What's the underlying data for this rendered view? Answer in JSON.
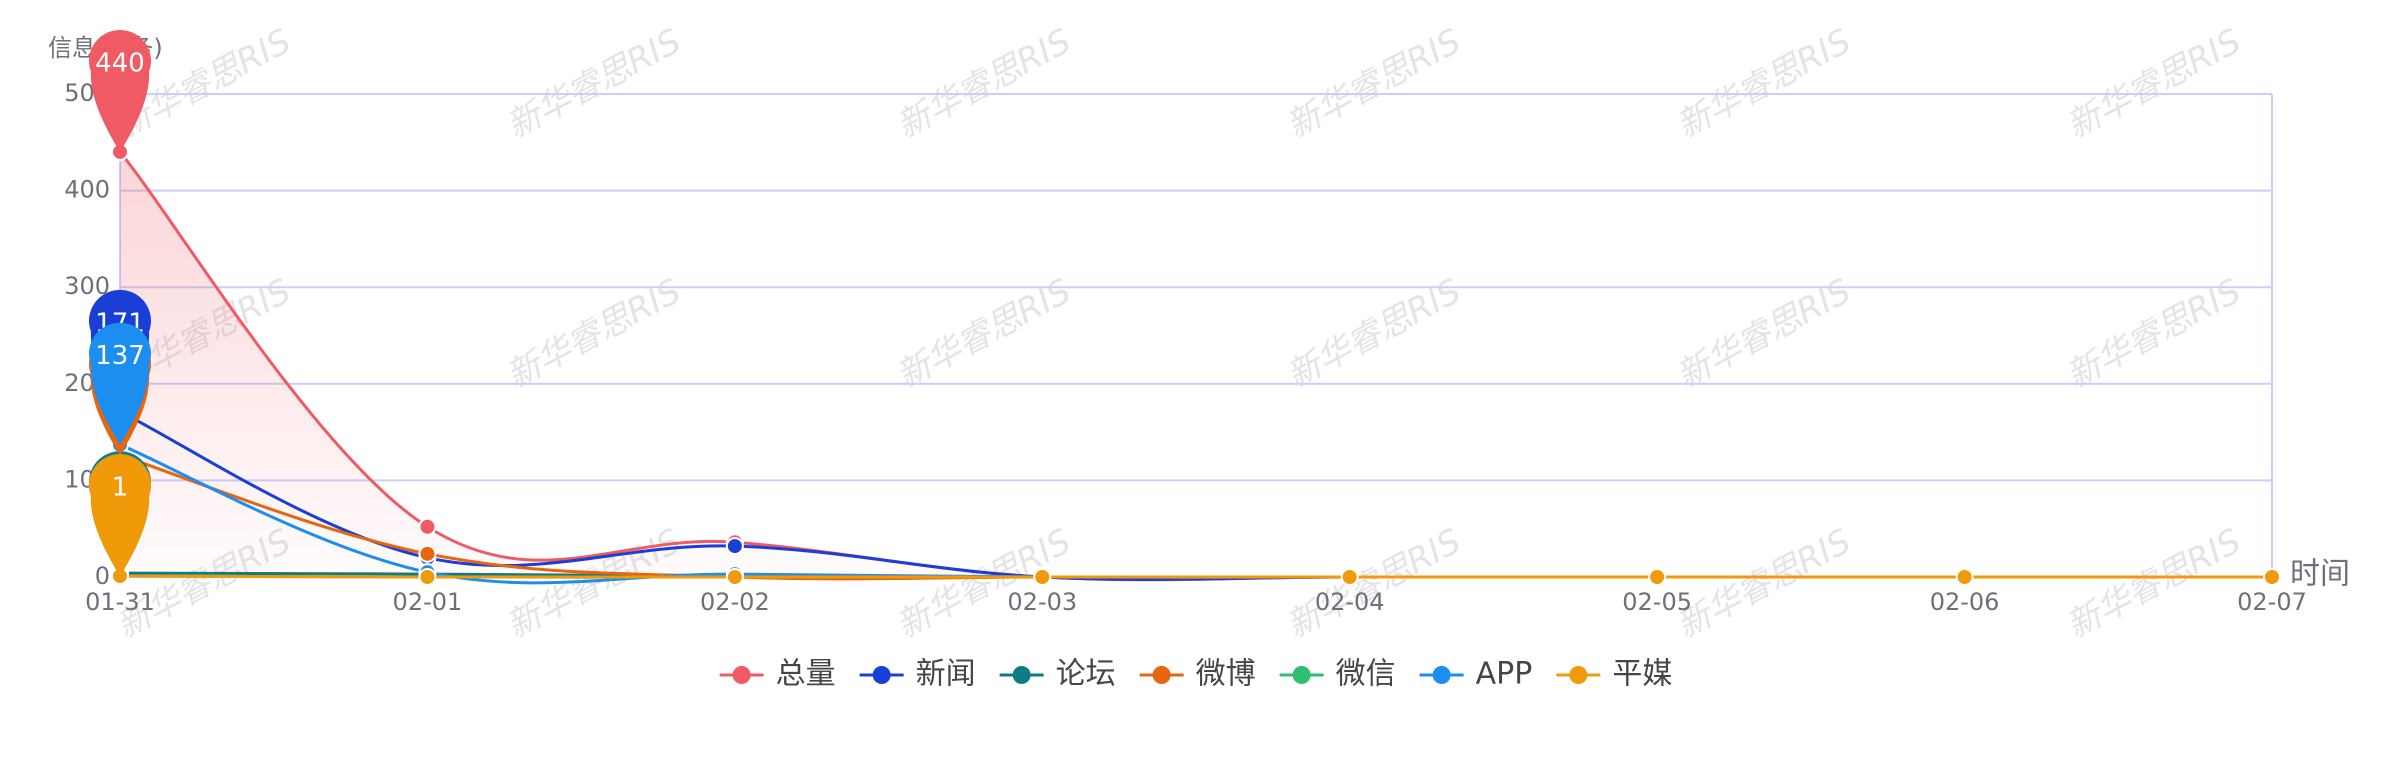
{
  "chart_data": {
    "type": "line",
    "watermark": "新华睿思RIS",
    "y_label": "信息量(条)",
    "x_label": "时间",
    "categories": [
      "01-31",
      "02-01",
      "02-02",
      "02-03",
      "02-04",
      "02-05",
      "02-06",
      "02-07"
    ],
    "ylim": [
      0,
      500
    ],
    "yticks": [
      0,
      100,
      200,
      300,
      400,
      500
    ],
    "grid": true,
    "smooth": true,
    "legend": "bottom",
    "series": [
      {
        "name": "总量",
        "color": "#f05a64",
        "area": true,
        "values": [
          440,
          52,
          36,
          0,
          0,
          0,
          0,
          0
        ]
      },
      {
        "name": "新闻",
        "color": "#1a3fd6",
        "values": [
          171,
          20,
          32,
          0,
          0,
          0,
          0,
          0
        ]
      },
      {
        "name": "论坛",
        "color": "#0e7c86",
        "values": [
          4,
          3,
          1,
          0,
          0,
          0,
          0,
          0
        ]
      },
      {
        "name": "微博",
        "color": "#e8650f",
        "values": [
          126,
          24,
          0,
          0,
          0,
          0,
          0,
          0
        ]
      },
      {
        "name": "微信",
        "color": "#2fbf71",
        "values": [
          1,
          0,
          0,
          0,
          0,
          0,
          0,
          0
        ]
      },
      {
        "name": "APP",
        "color": "#1c8ef0",
        "values": [
          137,
          5,
          3,
          0,
          0,
          0,
          0,
          0
        ]
      },
      {
        "name": "平媒",
        "color": "#f09a0a",
        "values": [
          1,
          0,
          0,
          0,
          0,
          0,
          0,
          0
        ]
      }
    ]
  }
}
